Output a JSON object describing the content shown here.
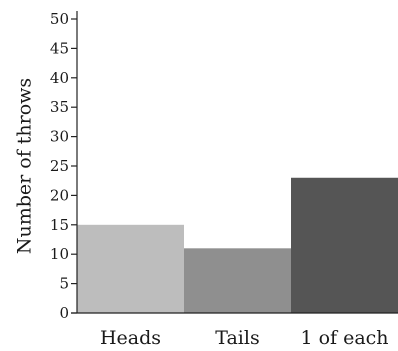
{
  "chart_data": {
    "type": "bar",
    "categories": [
      "Heads",
      "Tails",
      "1 of each"
    ],
    "values": [
      15,
      11,
      23
    ],
    "ylabel": "Number of throws",
    "xlabel": "",
    "ylim": [
      0,
      50
    ],
    "yticks": [
      0,
      5,
      10,
      15,
      20,
      25,
      30,
      35,
      40,
      45,
      50
    ],
    "grid": false,
    "colors": [
      "#bdbdbd",
      "#8f8f8f",
      "#555555"
    ]
  }
}
